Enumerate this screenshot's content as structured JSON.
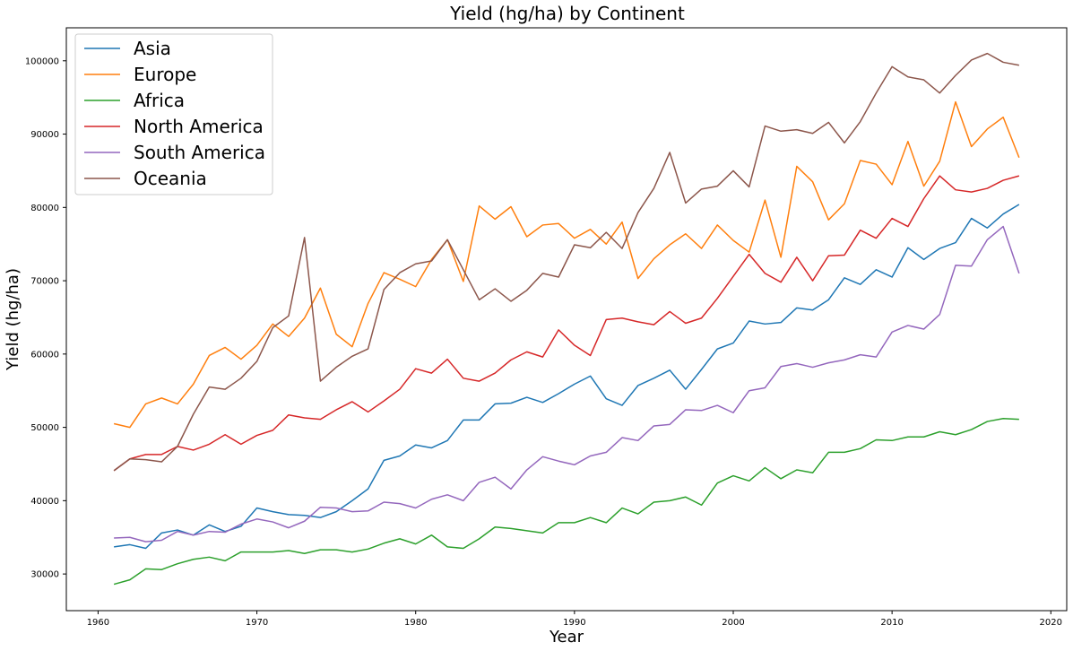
{
  "chart_data": {
    "type": "line",
    "title": "Yield (hg/ha) by Continent",
    "xlabel": "Year",
    "ylabel": "Yield (hg/ha)",
    "xlim": [
      1958,
      2021
    ],
    "ylim": [
      25000,
      104500
    ],
    "xticks": [
      1960,
      1970,
      1980,
      1990,
      2000,
      2010,
      2020
    ],
    "yticks": [
      30000,
      40000,
      50000,
      60000,
      70000,
      80000,
      90000,
      100000
    ],
    "grid": false,
    "legend_position": "top-left",
    "x": [
      1961,
      1962,
      1963,
      1964,
      1965,
      1966,
      1967,
      1968,
      1969,
      1970,
      1971,
      1972,
      1973,
      1974,
      1975,
      1976,
      1977,
      1978,
      1979,
      1980,
      1981,
      1982,
      1983,
      1984,
      1985,
      1986,
      1987,
      1988,
      1989,
      1990,
      1991,
      1992,
      1993,
      1994,
      1995,
      1996,
      1997,
      1998,
      1999,
      2000,
      2001,
      2002,
      2003,
      2004,
      2005,
      2006,
      2007,
      2008,
      2009,
      2010,
      2011,
      2012,
      2013,
      2014,
      2015,
      2016,
      2017,
      2018
    ],
    "series": [
      {
        "name": "Asia",
        "color": "#1f77b4",
        "values": [
          33700,
          34000,
          33500,
          35600,
          36000,
          35300,
          36700,
          35800,
          36500,
          39000,
          38500,
          38100,
          38000,
          37700,
          38500,
          40000,
          41600,
          45500,
          46100,
          47600,
          47200,
          48200,
          51000,
          51000,
          53200,
          53300,
          54100,
          53400,
          54600,
          55900,
          57000,
          53900,
          53000,
          55700,
          56700,
          57800,
          55200,
          57900,
          60700,
          61500,
          64500,
          64100,
          64300,
          66300,
          66000,
          67400,
          70400,
          69500,
          71500,
          70500,
          74500,
          72900,
          74400,
          75200,
          78500,
          77200,
          79100,
          80400
        ]
      },
      {
        "name": "Europe",
        "color": "#ff7f0e",
        "values": [
          50500,
          50000,
          53200,
          54000,
          53200,
          55900,
          59800,
          60900,
          59300,
          61200,
          64100,
          62400,
          64900,
          69000,
          62700,
          61000,
          66900,
          71100,
          70200,
          69200,
          72900,
          75600,
          69900,
          80200,
          78400,
          80100,
          76000,
          77600,
          77800,
          75800,
          77000,
          75000,
          78000,
          70300,
          73000,
          74900,
          76400,
          74400,
          77600,
          75500,
          73900,
          81000,
          73200,
          85600,
          83500,
          78300,
          80500,
          86400,
          85900,
          83100,
          89000,
          82900,
          86300,
          94400,
          88300,
          90700,
          92300,
          86800
        ]
      },
      {
        "name": "Africa",
        "color": "#2ca02c",
        "values": [
          28600,
          29200,
          30700,
          30600,
          31400,
          32000,
          32300,
          31800,
          33000,
          33000,
          33000,
          33200,
          32800,
          33300,
          33300,
          33000,
          33400,
          34200,
          34800,
          34100,
          35300,
          33700,
          33500,
          34800,
          36400,
          36200,
          35900,
          35600,
          37000,
          37000,
          37700,
          37000,
          39000,
          38200,
          39800,
          40000,
          40500,
          39400,
          42400,
          43400,
          42700,
          44500,
          43000,
          44200,
          43800,
          46600,
          46600,
          47100,
          48300,
          48200,
          48700,
          48700,
          49400,
          49000,
          49700,
          50800,
          51200,
          51100
        ]
      },
      {
        "name": "North America",
        "color": "#d62728",
        "values": [
          44100,
          45700,
          46300,
          46300,
          47400,
          46900,
          47700,
          49000,
          47700,
          48900,
          49600,
          51700,
          51300,
          51100,
          52400,
          53500,
          52100,
          53600,
          55200,
          58000,
          57400,
          59300,
          56700,
          56300,
          57400,
          59200,
          60300,
          59600,
          63300,
          61200,
          59800,
          64700,
          64900,
          64400,
          64000,
          65800,
          64200,
          64900,
          67600,
          70600,
          73600,
          71000,
          69800,
          73200,
          70000,
          73400,
          73500,
          76900,
          75800,
          78500,
          77400,
          81200,
          84300,
          82400,
          82100,
          82600,
          83700,
          84300
        ]
      },
      {
        "name": "South America",
        "color": "#9467bd",
        "values": [
          34900,
          35000,
          34400,
          34600,
          35800,
          35300,
          35800,
          35700,
          36800,
          37500,
          37100,
          36300,
          37200,
          39100,
          39000,
          38500,
          38600,
          39800,
          39600,
          39000,
          40200,
          40800,
          40000,
          42500,
          43200,
          41600,
          44200,
          46000,
          45400,
          44900,
          46100,
          46600,
          48600,
          48200,
          50200,
          50400,
          52400,
          52300,
          53000,
          52000,
          55000,
          55400,
          58300,
          58700,
          58200,
          58800,
          59200,
          59900,
          59600,
          63000,
          63900,
          63400,
          65400,
          72100,
          72000,
          75600,
          77400,
          71000
        ]
      },
      {
        "name": "Oceania",
        "color": "#8c564b",
        "values": [
          44100,
          45700,
          45600,
          45300,
          47400,
          51800,
          55500,
          55200,
          56700,
          59000,
          63600,
          65200,
          75900,
          56300,
          58200,
          59700,
          60700,
          68800,
          71100,
          72300,
          72700,
          75600,
          71500,
          67400,
          68900,
          67200,
          68700,
          71000,
          70500,
          74900,
          74500,
          76600,
          74400,
          79300,
          82600,
          87500,
          80600,
          82500,
          82900,
          85000,
          82800,
          91100,
          90400,
          90600,
          90100,
          91600,
          88800,
          91700,
          95600,
          99200,
          97800,
          97400,
          95600,
          98000,
          100100,
          101000,
          99800,
          99400
        ]
      }
    ]
  }
}
